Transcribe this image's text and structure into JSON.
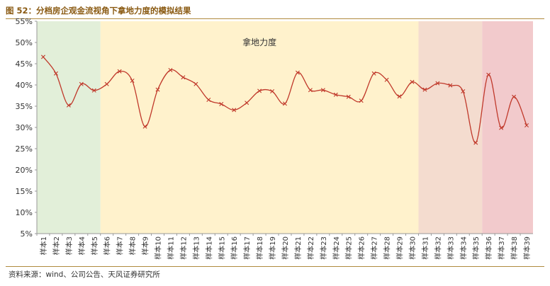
{
  "header": {
    "title": "图 52：分档房企观金流视角下拿地力度的模拟结果"
  },
  "footer": {
    "source": "资料来源：wind、公司公告、天风证券研究所"
  },
  "chart_data": {
    "type": "line",
    "title": "",
    "xlabel": "",
    "ylabel": "",
    "ylim": [
      0.05,
      0.55
    ],
    "yticks": [
      "5%",
      "10%",
      "15%",
      "20%",
      "25%",
      "30%",
      "35%",
      "40%",
      "45%",
      "50%",
      "55%"
    ],
    "grid": false,
    "categories": [
      "样本1",
      "样本2",
      "样本3",
      "样本4",
      "样本5",
      "样本6",
      "样本7",
      "样本8",
      "样本9",
      "样本10",
      "样本11",
      "样本12",
      "样本13",
      "样本14",
      "样本15",
      "样本16",
      "样本17",
      "样本18",
      "样本19",
      "样本20",
      "样本21",
      "样本22",
      "样本23",
      "样本24",
      "样本25",
      "样本26",
      "样本27",
      "样本28",
      "样本29",
      "样本30",
      "样本31",
      "样本32",
      "样本33",
      "样本34",
      "样本35",
      "样本36",
      "样本37",
      "样本38",
      "样本39"
    ],
    "series": [
      {
        "values": [
          0.466,
          0.427,
          0.352,
          0.402,
          0.387,
          0.402,
          0.432,
          0.41,
          0.302,
          0.389,
          0.435,
          0.418,
          0.402,
          0.365,
          0.355,
          0.341,
          0.358,
          0.386,
          0.385,
          0.356,
          0.429,
          0.388,
          0.388,
          0.377,
          0.372,
          0.363,
          0.427,
          0.412,
          0.373,
          0.407,
          0.389,
          0.404,
          0.399,
          0.385,
          0.264,
          0.424,
          0.299,
          0.372,
          0.305
        ],
        "color": "#c0392b"
      }
    ],
    "regions": [
      {
        "from": 1,
        "to": 5,
        "color": "#e2efd9"
      },
      {
        "from": 6,
        "to": 30,
        "color": "#fff2cc",
        "label": "拿地力度"
      },
      {
        "from": 31,
        "to": 35,
        "color": "#f4dccf"
      },
      {
        "from": 36,
        "to": 39,
        "color": "#f2cacc"
      }
    ]
  }
}
